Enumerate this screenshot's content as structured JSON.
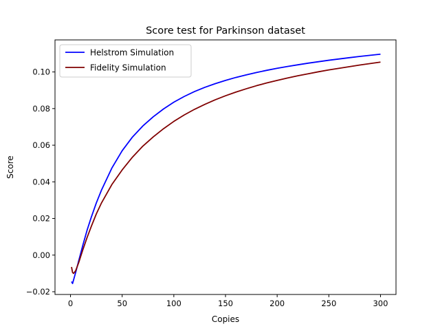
{
  "chart_data": {
    "type": "line",
    "title": "Score test for Parkinson dataset",
    "xlabel": "Copies",
    "ylabel": "Score",
    "xlim": [
      -15,
      315
    ],
    "ylim": [
      -0.0215,
      0.1175
    ],
    "xticks": [
      0,
      50,
      100,
      150,
      200,
      250,
      300
    ],
    "xtick_labels": [
      "0",
      "50",
      "100",
      "150",
      "200",
      "250",
      "300"
    ],
    "yticks": [
      -0.02,
      0.0,
      0.02,
      0.04,
      0.06,
      0.08,
      0.1
    ],
    "ytick_labels": [
      "−0.02",
      "0.00",
      "0.02",
      "0.04",
      "0.06",
      "0.08",
      "0.10"
    ],
    "grid": false,
    "legend_position": "top-left",
    "series": [
      {
        "name": "Helstrom Simulation",
        "color": "#0000ff",
        "x": [
          1,
          2,
          3,
          5,
          8,
          12,
          16,
          20,
          25,
          30,
          40,
          50,
          60,
          70,
          80,
          90,
          100,
          110,
          120,
          130,
          140,
          150,
          160,
          170,
          180,
          190,
          200,
          210,
          220,
          230,
          240,
          250,
          260,
          270,
          280,
          290,
          300
        ],
        "y": [
          -0.0145,
          -0.0155,
          -0.0135,
          -0.0095,
          -0.003,
          0.0055,
          0.0135,
          0.0205,
          0.0285,
          0.0355,
          0.0475,
          0.057,
          0.0645,
          0.0705,
          0.0755,
          0.0798,
          0.0835,
          0.0866,
          0.0893,
          0.0916,
          0.0936,
          0.0954,
          0.097,
          0.0984,
          0.0997,
          0.1009,
          0.102,
          0.103,
          0.1039,
          0.1048,
          0.1056,
          0.1064,
          0.1071,
          0.1078,
          0.1085,
          0.1091,
          0.1097
        ]
      },
      {
        "name": "Fidelity Simulation",
        "color": "#800000",
        "x": [
          1,
          2,
          3,
          5,
          8,
          12,
          16,
          20,
          25,
          30,
          40,
          50,
          60,
          70,
          80,
          90,
          100,
          110,
          120,
          130,
          140,
          150,
          160,
          170,
          180,
          190,
          200,
          210,
          220,
          230,
          240,
          250,
          260,
          270,
          280,
          290,
          300
        ],
        "y": [
          -0.0065,
          -0.0095,
          -0.01,
          -0.0085,
          -0.004,
          0.003,
          0.0095,
          0.0155,
          0.0225,
          0.0285,
          0.0385,
          0.0465,
          0.0535,
          0.0595,
          0.0645,
          0.069,
          0.073,
          0.0765,
          0.0796,
          0.0823,
          0.0848,
          0.087,
          0.089,
          0.0908,
          0.0925,
          0.094,
          0.0954,
          0.0967,
          0.0979,
          0.099,
          0.1001,
          0.1011,
          0.102,
          0.1029,
          0.1038,
          0.1046,
          0.1054
        ]
      }
    ]
  }
}
